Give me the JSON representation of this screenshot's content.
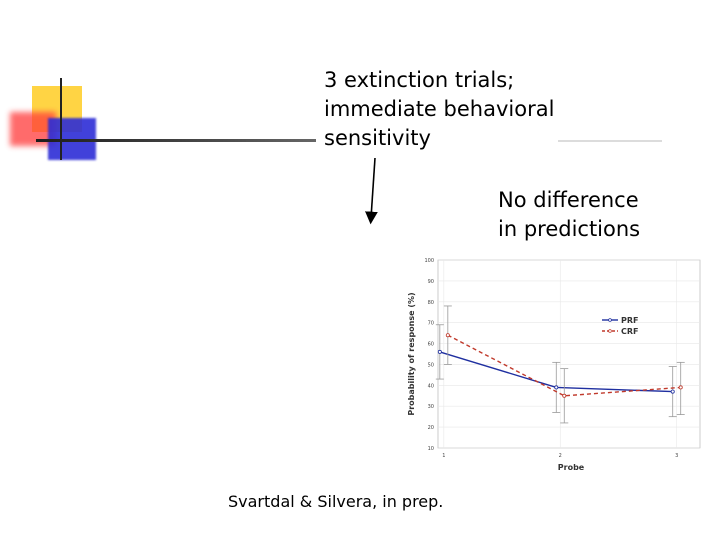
{
  "annotations": {
    "top_note": [
      "3 extinction trials;",
      "immediate behavioral",
      "sensitivity"
    ],
    "right_note": [
      "No difference",
      "in predictions"
    ],
    "citation": "Svartdal & Silvera, in prep."
  },
  "chart_data": {
    "type": "line",
    "title": "",
    "xlabel": "Probe",
    "ylabel": "Probability of response (%)",
    "x": [
      1,
      2,
      3
    ],
    "xlim": [
      0.95,
      3.2
    ],
    "ylim": [
      10,
      100
    ],
    "yticks": [
      10,
      20,
      30,
      40,
      50,
      60,
      70,
      80,
      90,
      100
    ],
    "grid": true,
    "legend": "right",
    "series": [
      {
        "name": "PRF",
        "color": "#1f2fa0",
        "style": "solid",
        "values": [
          56,
          39,
          37
        ],
        "err_low": [
          43,
          27,
          25
        ],
        "err_high": [
          69,
          51,
          49
        ]
      },
      {
        "name": "CRF",
        "color": "#c0392b",
        "style": "dashed",
        "values": [
          64,
          35,
          39
        ],
        "err_low": [
          50,
          22,
          26
        ],
        "err_high": [
          78,
          48,
          51
        ]
      }
    ]
  }
}
